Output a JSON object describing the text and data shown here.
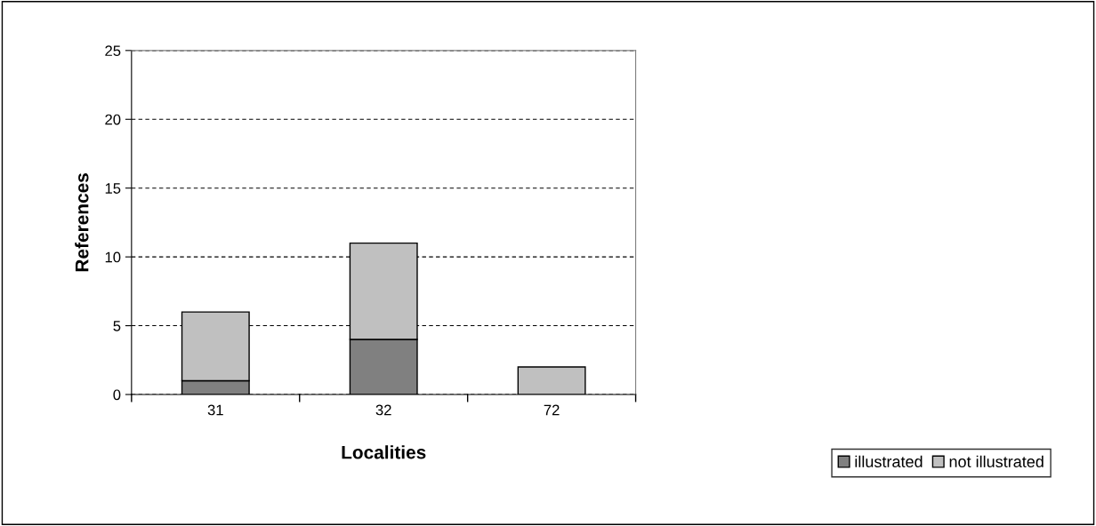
{
  "chart_data": {
    "type": "bar",
    "stacked": true,
    "xlabel": "Localities",
    "ylabel": "References",
    "categories": [
      "31",
      "32",
      "72"
    ],
    "series": [
      {
        "name": "illustrated",
        "color": "#808080",
        "values": [
          1,
          4,
          0
        ]
      },
      {
        "name": "not illustrated",
        "color": "#c0c0c0",
        "values": [
          5,
          7,
          2
        ]
      }
    ],
    "ylim": [
      0,
      25
    ],
    "yticks": [
      0,
      5,
      10,
      15,
      20,
      25
    ],
    "grid": "y",
    "legend": "bottom right"
  }
}
